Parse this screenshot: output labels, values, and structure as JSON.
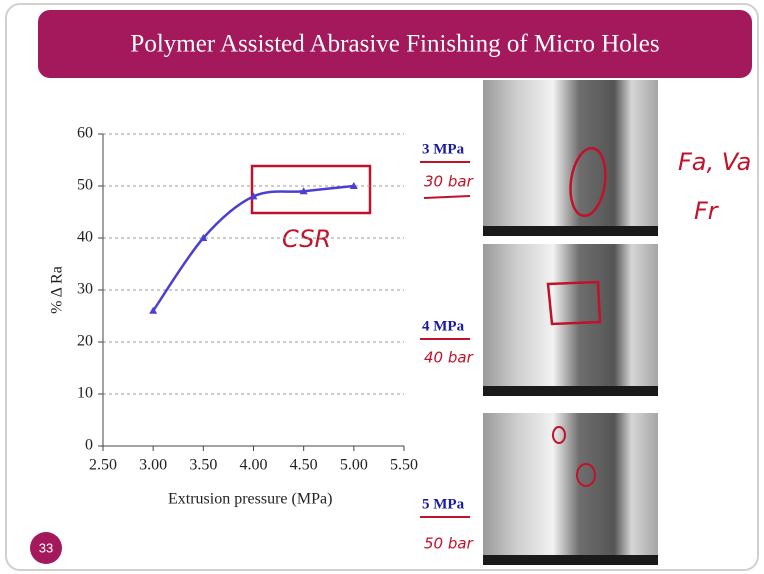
{
  "slide": {
    "title": "Polymer Assisted Abrasive Finishing of Micro Holes",
    "page_number": "33"
  },
  "chart_data": {
    "type": "line",
    "x_label": "Extrusion pressure (MPa)",
    "y_label": "% Δ Ra",
    "x": [
      3.0,
      3.5,
      4.0,
      4.5,
      5.0
    ],
    "series": [
      {
        "name": "% Δ Ra",
        "color": "#4a3fd0",
        "values": [
          26,
          40,
          48,
          49,
          50
        ]
      }
    ],
    "xlim": [
      2.5,
      5.5
    ],
    "xticks": [
      {
        "value": 2.5,
        "label": "2.50"
      },
      {
        "value": 3.0,
        "label": "3.00"
      },
      {
        "value": 3.5,
        "label": "3.50"
      },
      {
        "value": 4.0,
        "label": "4.00"
      },
      {
        "value": 4.5,
        "label": "4.50"
      },
      {
        "value": 5.0,
        "label": "5.00"
      },
      {
        "value": 5.5,
        "label": "5.50"
      }
    ],
    "ylim": [
      0,
      60
    ],
    "yticks": [
      0,
      10,
      20,
      30,
      40,
      50,
      60
    ],
    "grid": true
  },
  "images": [
    {
      "label": "3 MPa",
      "note": "30 bar"
    },
    {
      "label": "4 MPa",
      "note": "40 bar"
    },
    {
      "label": "5 MPa",
      "note": "50 bar"
    }
  ],
  "annotations": {
    "chart_note": "CSR",
    "side_notes": [
      "Fa, Va",
      "Fr"
    ]
  }
}
